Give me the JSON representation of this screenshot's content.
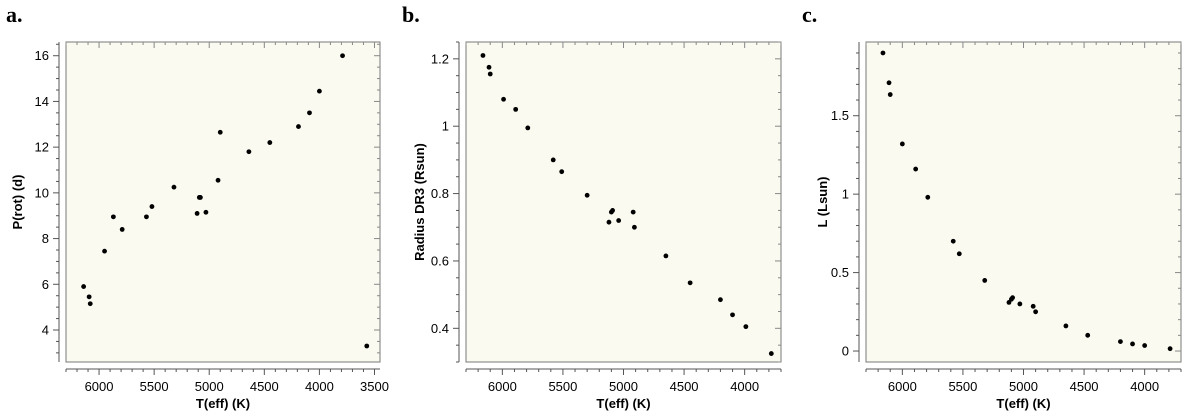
{
  "chart_data": [
    {
      "panel": "a.",
      "type": "scatter",
      "xlabel": "T(eff)  (K)",
      "ylabel": "P(rot)  (d)",
      "xlim": [
        6300,
        3450
      ],
      "ylim": [
        2.6,
        16.6
      ],
      "xticks": [
        6000,
        5500,
        5000,
        4500,
        4000,
        3500
      ],
      "yticks": [
        4,
        6,
        8,
        10,
        12,
        14,
        16
      ],
      "xminor": 100,
      "yminor": 0.5,
      "background": "#fafaf0",
      "point_color": "#000000",
      "points": [
        [
          6140,
          5.9
        ],
        [
          6090,
          5.45
        ],
        [
          6080,
          5.15
        ],
        [
          5950,
          7.45
        ],
        [
          5870,
          8.95
        ],
        [
          5790,
          8.4
        ],
        [
          5570,
          8.95
        ],
        [
          5520,
          9.4
        ],
        [
          5320,
          10.25
        ],
        [
          5110,
          9.1
        ],
        [
          5090,
          9.8
        ],
        [
          5080,
          9.8
        ],
        [
          5030,
          9.15
        ],
        [
          4920,
          10.55
        ],
        [
          4900,
          12.65
        ],
        [
          4640,
          11.8
        ],
        [
          4450,
          12.2
        ],
        [
          4190,
          12.9
        ],
        [
          4090,
          13.5
        ],
        [
          4000,
          14.45
        ],
        [
          3790,
          16.0
        ],
        [
          3570,
          3.3
        ]
      ]
    },
    {
      "panel": "b.",
      "type": "scatter",
      "xlabel": "T(eff)  (K)",
      "ylabel": "Radius DR3 (Rsun)",
      "xlim": [
        6300,
        3700
      ],
      "ylim": [
        0.3,
        1.25
      ],
      "xticks": [
        6000,
        5500,
        5000,
        4500,
        4000
      ],
      "yticks": [
        0.4,
        0.6,
        0.8,
        1,
        1.2
      ],
      "ytick_labels": [
        "0.4",
        "0.6",
        "0.8",
        "1",
        "1.2"
      ],
      "xminor": 100,
      "yminor": 0.05,
      "background": "#fafaf0",
      "point_color": "#000000",
      "points": [
        [
          6160,
          1.21
        ],
        [
          6110,
          1.175
        ],
        [
          6100,
          1.155
        ],
        [
          5990,
          1.08
        ],
        [
          5890,
          1.05
        ],
        [
          5790,
          0.995
        ],
        [
          5580,
          0.9
        ],
        [
          5510,
          0.865
        ],
        [
          5300,
          0.795
        ],
        [
          5120,
          0.715
        ],
        [
          5100,
          0.745
        ],
        [
          5090,
          0.75
        ],
        [
          5040,
          0.72
        ],
        [
          4920,
          0.745
        ],
        [
          4910,
          0.7
        ],
        [
          4650,
          0.615
        ],
        [
          4450,
          0.535
        ],
        [
          4200,
          0.485
        ],
        [
          4100,
          0.44
        ],
        [
          3990,
          0.405
        ],
        [
          3780,
          0.325
        ]
      ]
    },
    {
      "panel": "c.",
      "type": "scatter",
      "xlabel": "T(eff)  (K)",
      "ylabel": "L  (Lsun)",
      "xlim": [
        6300,
        3700
      ],
      "ylim": [
        -0.07,
        1.97
      ],
      "xticks": [
        6000,
        5500,
        5000,
        4500,
        4000
      ],
      "yticks": [
        0,
        0.5,
        1,
        1.5
      ],
      "ytick_labels": [
        "0",
        "0.5",
        "1",
        "1.5"
      ],
      "xminor": 100,
      "yminor": 0.1,
      "background": "#fafaf0",
      "point_color": "#000000",
      "points": [
        [
          6160,
          1.9
        ],
        [
          6110,
          1.71
        ],
        [
          6100,
          1.635
        ],
        [
          6000,
          1.32
        ],
        [
          5890,
          1.16
        ],
        [
          5790,
          0.98
        ],
        [
          5580,
          0.7
        ],
        [
          5530,
          0.62
        ],
        [
          5320,
          0.45
        ],
        [
          5120,
          0.31
        ],
        [
          5100,
          0.33
        ],
        [
          5090,
          0.34
        ],
        [
          5030,
          0.3
        ],
        [
          4920,
          0.285
        ],
        [
          4900,
          0.25
        ],
        [
          4650,
          0.16
        ],
        [
          4470,
          0.1
        ],
        [
          4200,
          0.06
        ],
        [
          4100,
          0.045
        ],
        [
          4000,
          0.035
        ],
        [
          3790,
          0.015
        ]
      ]
    }
  ]
}
